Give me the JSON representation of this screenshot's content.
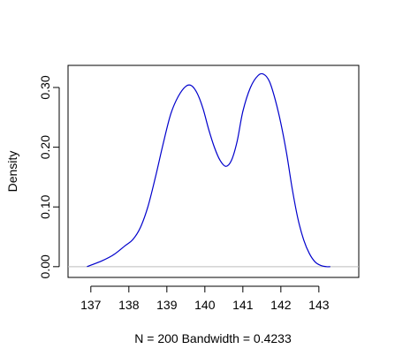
{
  "chart_data": {
    "type": "line",
    "title": "",
    "xlabel": "N = 200   Bandwidth = 0.4233",
    "ylabel": "Density",
    "xlim": [
      136.4,
      144.05
    ],
    "ylim": [
      -0.018,
      0.337
    ],
    "x_ticks": [
      137,
      138,
      139,
      140,
      141,
      142,
      143
    ],
    "y_ticks": [
      0.0,
      0.1,
      0.2,
      0.3
    ],
    "y_tick_labels": [
      "0.00",
      "0.10",
      "0.20",
      "0.30"
    ],
    "baseline": 0,
    "grid": false,
    "series": [
      {
        "color": "#0000cc",
        "x": [
          136.9,
          137.3,
          137.6,
          137.9,
          138.1,
          138.3,
          138.5,
          138.7,
          138.9,
          139.1,
          139.3,
          139.5,
          139.65,
          139.8,
          139.95,
          140.1,
          140.25,
          140.4,
          140.55,
          140.7,
          140.85,
          141.0,
          141.2,
          141.4,
          141.55,
          141.7,
          141.85,
          142.0,
          142.15,
          142.3,
          142.45,
          142.6,
          142.75,
          142.9,
          143.05,
          143.2,
          143.3
        ],
        "y": [
          0.0,
          0.01,
          0.02,
          0.035,
          0.045,
          0.065,
          0.1,
          0.15,
          0.205,
          0.255,
          0.285,
          0.302,
          0.303,
          0.29,
          0.265,
          0.23,
          0.2,
          0.178,
          0.168,
          0.178,
          0.21,
          0.26,
          0.3,
          0.32,
          0.322,
          0.31,
          0.28,
          0.24,
          0.19,
          0.13,
          0.08,
          0.045,
          0.022,
          0.008,
          0.002,
          0.0,
          0.0
        ]
      }
    ]
  }
}
